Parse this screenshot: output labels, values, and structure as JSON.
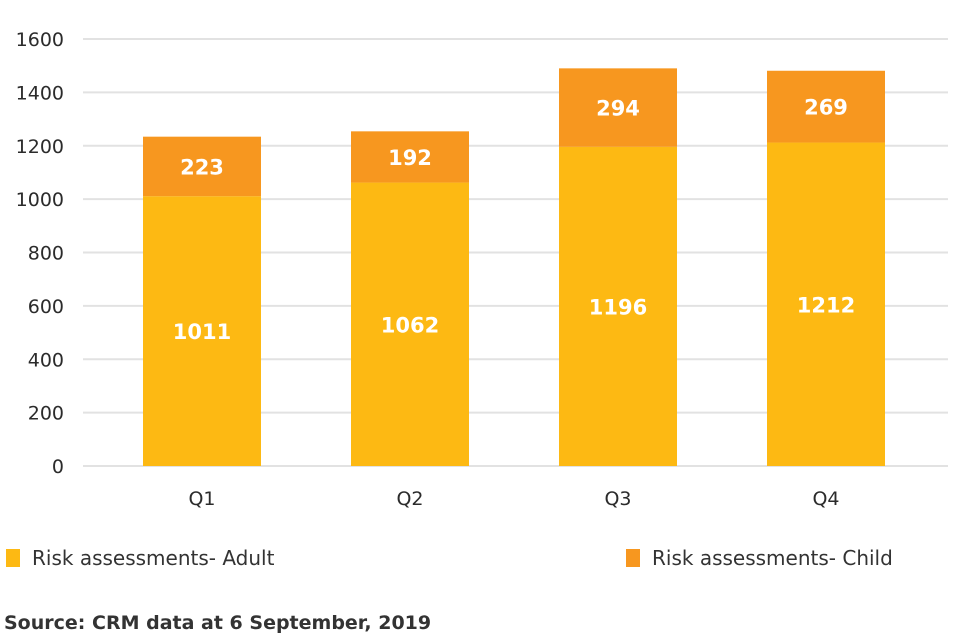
{
  "chart_data": {
    "type": "bar",
    "stacked": true,
    "title": "",
    "xlabel": "",
    "ylabel": "",
    "categories": [
      "Q1",
      "Q2",
      "Q3",
      "Q4"
    ],
    "series": [
      {
        "name": "Risk assessments- Adult",
        "color": "#FDB913",
        "values": [
          1011,
          1062,
          1196,
          1212
        ]
      },
      {
        "name": "Risk assessments- Child",
        "color": "#F7971F",
        "values": [
          223,
          192,
          294,
          269
        ]
      }
    ],
    "ylim": [
      0,
      1600
    ],
    "yticks": [
      0,
      200,
      400,
      600,
      800,
      1000,
      1200,
      1400,
      1600
    ],
    "grid": true,
    "legend_position": "bottom"
  },
  "source": "Source: CRM data at 6 September, 2019"
}
